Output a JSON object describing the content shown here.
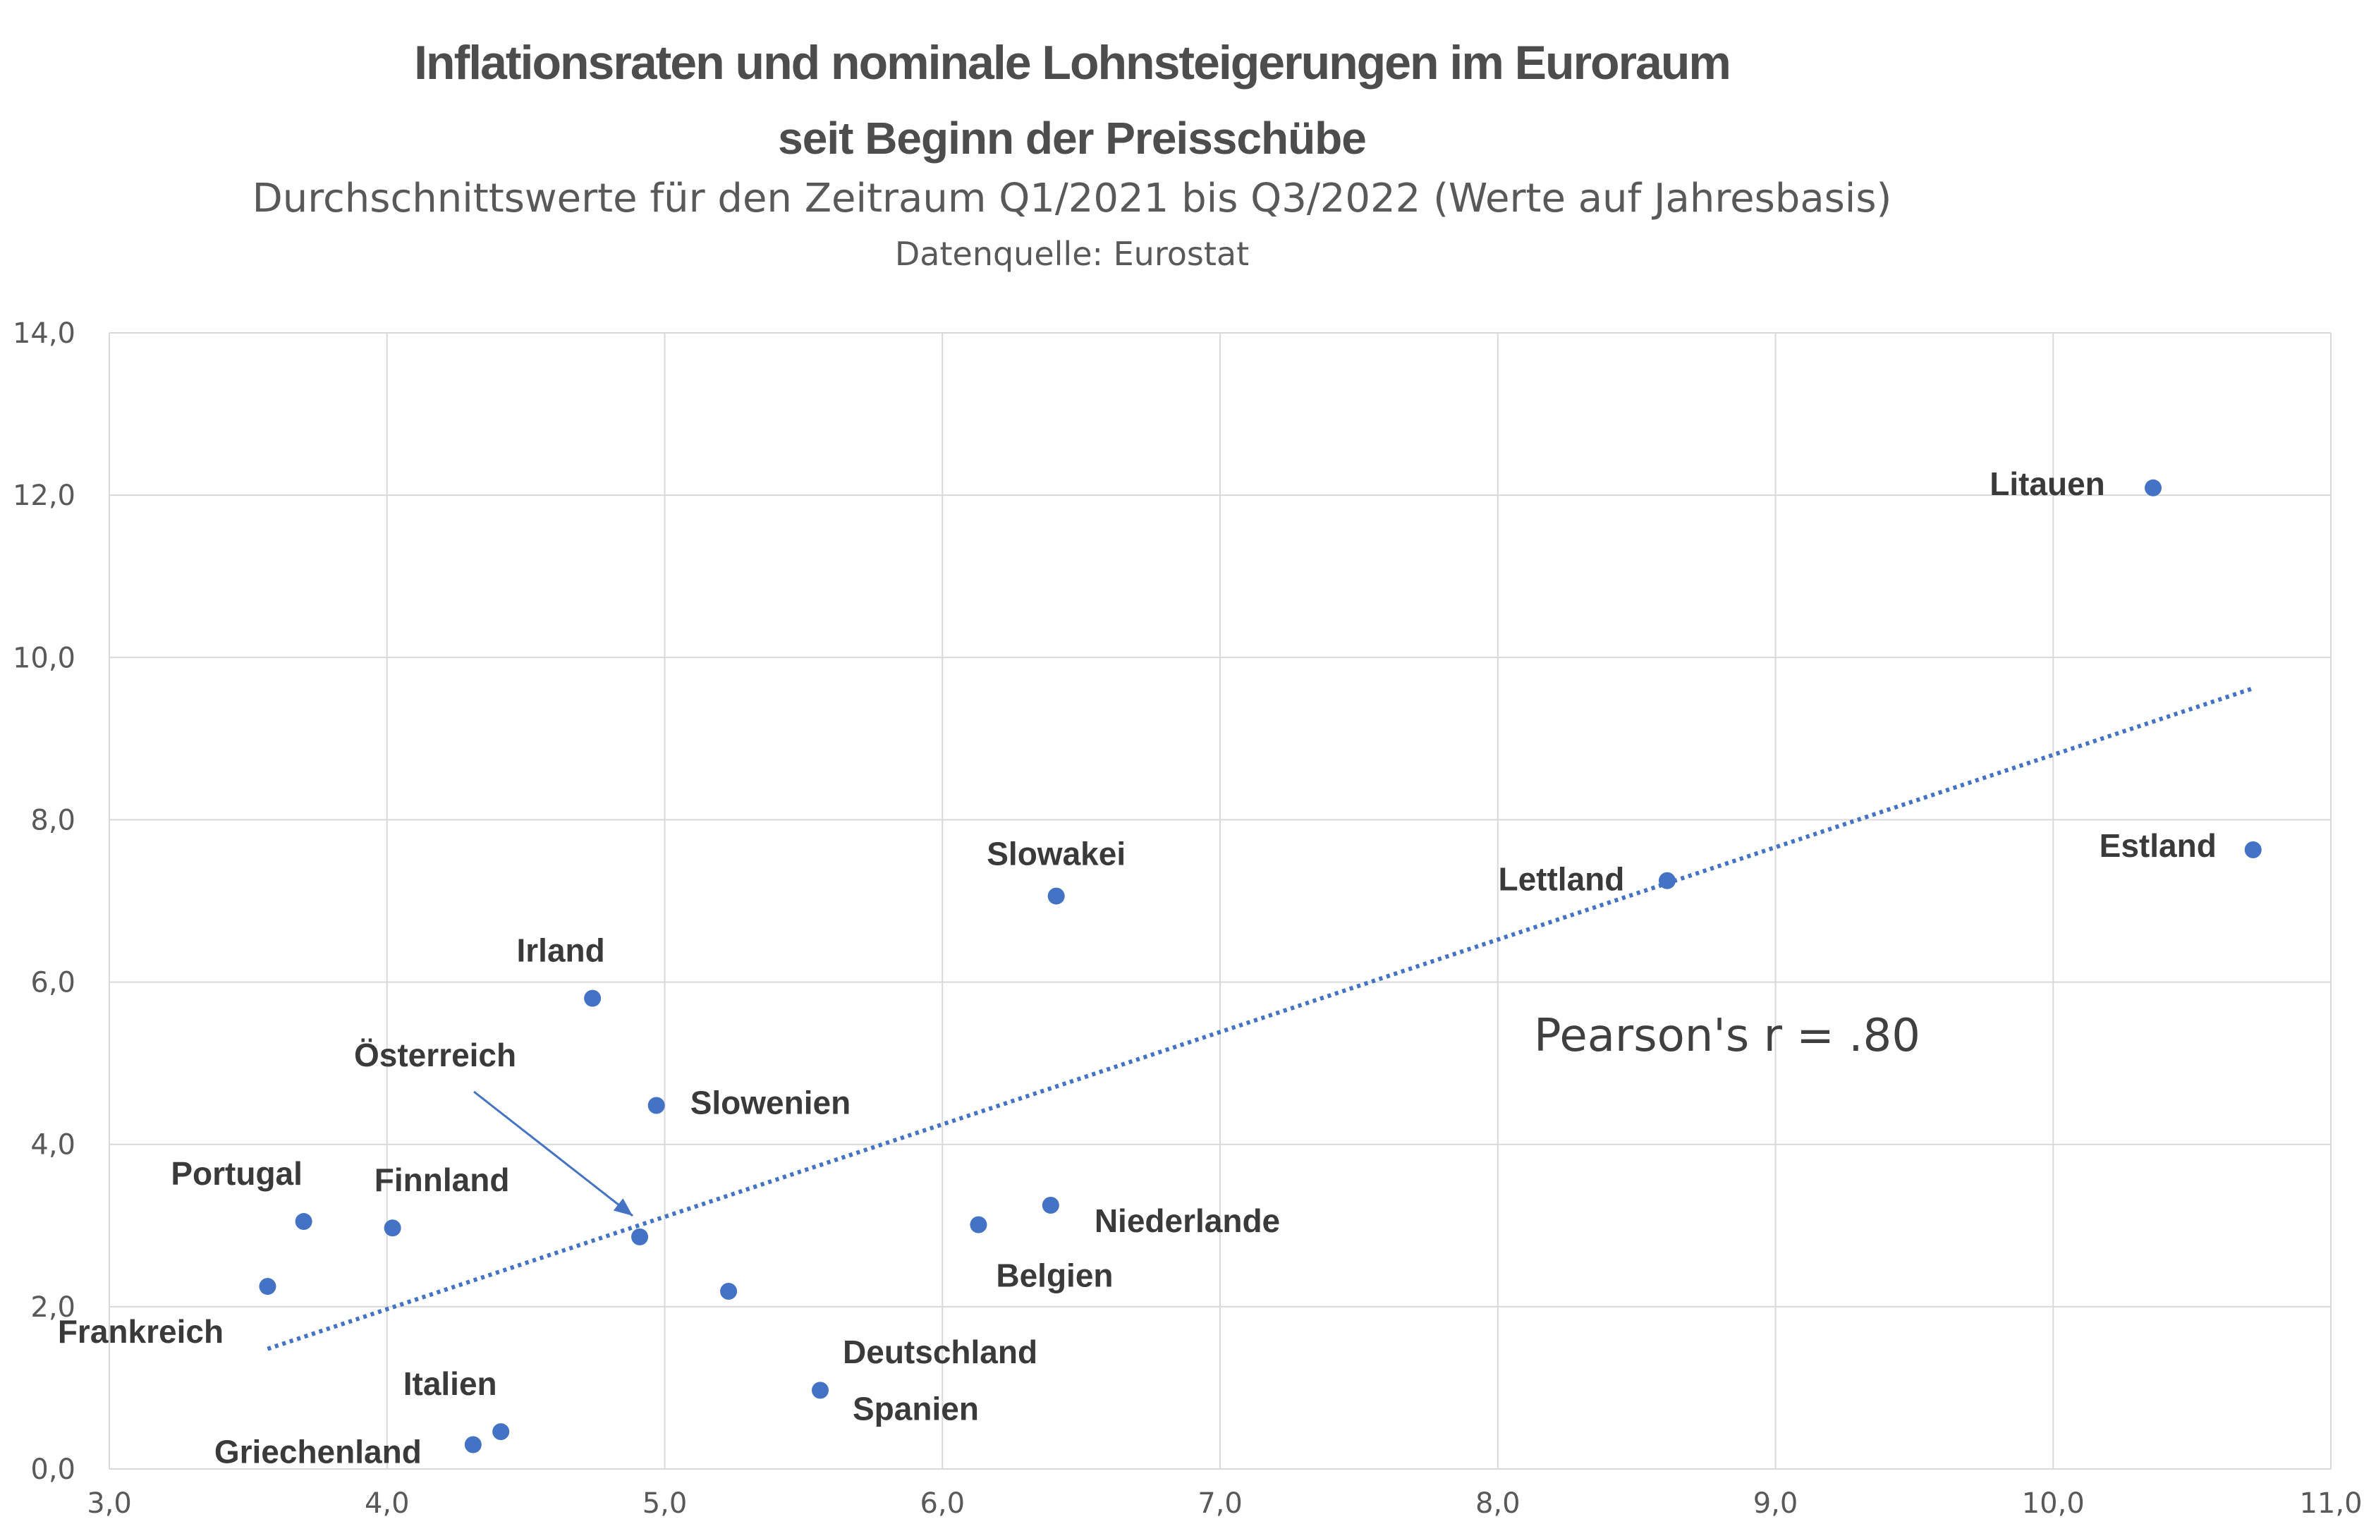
{
  "chart_data": {
    "type": "scatter",
    "title": "Inflationsraten und nominale Lohnsteigerungen im Euroraum",
    "subtitle": "seit Beginn der Preisschübe",
    "subtitle2": "Durchschnittswerte für den Zeitraum Q1/2021 bis Q3/2022 (Werte auf Jahresbasis)",
    "source": "Datenquelle: Eurostat",
    "xlabel": "",
    "ylabel": "",
    "xlim": [
      3.0,
      11.0
    ],
    "ylim": [
      0.0,
      14.0
    ],
    "xticks": [
      "3,0",
      "4,0",
      "5,0",
      "6,0",
      "7,0",
      "8,0",
      "9,0",
      "10,0",
      "11,0"
    ],
    "yticks": [
      "0,0",
      "2,0",
      "4,0",
      "6,0",
      "8,0",
      "10,0",
      "12,0",
      "14,0"
    ],
    "grid": true,
    "point_color": "#4472c4",
    "trend_color": "#4472c4",
    "points": [
      {
        "label": "Frankreich",
        "x": 3.57,
        "y": 2.25
      },
      {
        "label": "Portugal",
        "x": 3.7,
        "y": 3.05
      },
      {
        "label": "Finnland",
        "x": 4.02,
        "y": 2.97
      },
      {
        "label": "Griechenland",
        "x": 4.31,
        "y": 0.3
      },
      {
        "label": "Italien",
        "x": 4.41,
        "y": 0.46
      },
      {
        "label": "Irland",
        "x": 4.74,
        "y": 5.8
      },
      {
        "label": "Österreich",
        "x": 4.91,
        "y": 2.86
      },
      {
        "label": "Slowenien",
        "x": 4.97,
        "y": 4.48
      },
      {
        "label": "Deutschland",
        "x": 5.23,
        "y": 2.19
      },
      {
        "label": "Spanien",
        "x": 5.56,
        "y": 0.97
      },
      {
        "label": "Belgien",
        "x": 6.13,
        "y": 3.01
      },
      {
        "label": "Niederlande",
        "x": 6.39,
        "y": 3.25
      },
      {
        "label": "Slowakei",
        "x": 6.41,
        "y": 7.06
      },
      {
        "label": "Lettland",
        "x": 8.61,
        "y": 7.25
      },
      {
        "label": "Litauen",
        "x": 10.36,
        "y": 12.09
      },
      {
        "label": "Estland",
        "x": 10.72,
        "y": 7.63
      }
    ],
    "trendline": {
      "x1": 3.57,
      "y1": 1.48,
      "x2": 10.72,
      "y2": 9.62
    },
    "annotation": "Pearson's r = .80"
  }
}
